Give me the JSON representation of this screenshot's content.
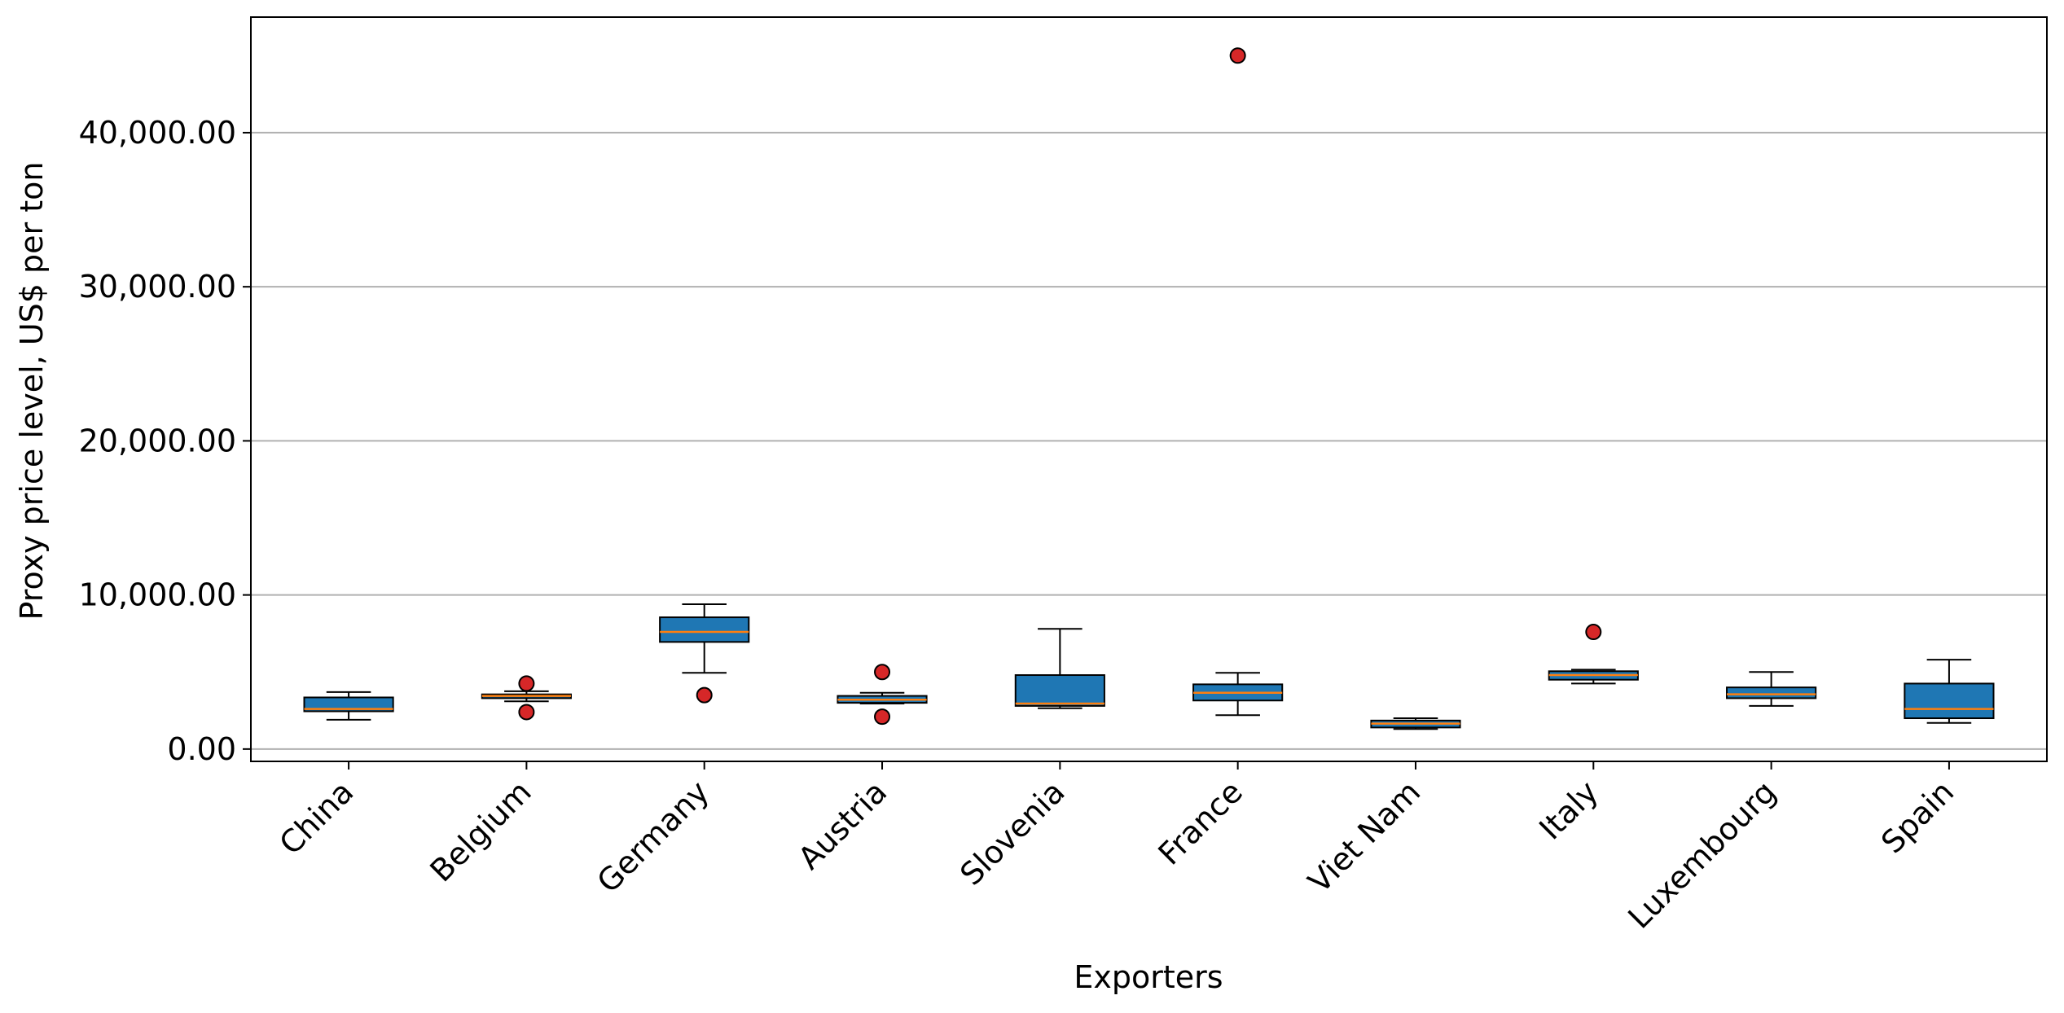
{
  "chart_data": {
    "type": "box",
    "title": "",
    "xlabel": "Exporters",
    "ylabel": "Proxy price level, US$ per ton",
    "categories": [
      "China",
      "Belgium",
      "Germany",
      "Austria",
      "Slovenia",
      "France",
      "Viet Nam",
      "Italy",
      "Luxembourg",
      "Spain"
    ],
    "boxes": [
      {
        "category": "China",
        "whisker_low": 1900,
        "q1": 2450,
        "median": 2600,
        "q3": 3350,
        "whisker_high": 3700,
        "outliers": []
      },
      {
        "category": "Belgium",
        "whisker_low": 3100,
        "q1": 3300,
        "median": 3450,
        "q3": 3550,
        "whisker_high": 3750,
        "outliers": [
          2400,
          4250
        ]
      },
      {
        "category": "Germany",
        "whisker_low": 4950,
        "q1": 6950,
        "median": 7600,
        "q3": 8550,
        "whisker_high": 9400,
        "outliers": [
          3500
        ]
      },
      {
        "category": "Austria",
        "whisker_low": 2950,
        "q1": 3000,
        "median": 3200,
        "q3": 3450,
        "whisker_high": 3650,
        "outliers": [
          2100,
          5000
        ]
      },
      {
        "category": "Slovenia",
        "whisker_low": 2650,
        "q1": 2800,
        "median": 2950,
        "q3": 4800,
        "whisker_high": 7800,
        "outliers": []
      },
      {
        "category": "France",
        "whisker_low": 2200,
        "q1": 3150,
        "median": 3650,
        "q3": 4200,
        "whisker_high": 4950,
        "outliers": [
          45000
        ]
      },
      {
        "category": "Viet Nam",
        "whisker_low": 1300,
        "q1": 1400,
        "median": 1650,
        "q3": 1850,
        "whisker_high": 2000,
        "outliers": []
      },
      {
        "category": "Italy",
        "whisker_low": 4250,
        "q1": 4500,
        "median": 4800,
        "q3": 5050,
        "whisker_high": 5150,
        "outliers": [
          7600
        ]
      },
      {
        "category": "Luxembourg",
        "whisker_low": 2800,
        "q1": 3300,
        "median": 3550,
        "q3": 4000,
        "whisker_high": 5000,
        "outliers": []
      },
      {
        "category": "Spain",
        "whisker_low": 1700,
        "q1": 2000,
        "median": 2600,
        "q3": 4250,
        "whisker_high": 5800,
        "outliers": []
      }
    ],
    "ylim": [
      -800,
      47500
    ],
    "yticks": [
      0,
      10000,
      20000,
      30000,
      40000
    ],
    "ytick_labels": [
      "0.00",
      "10,000.00",
      "20,000.00",
      "30,000.00",
      "40,000.00"
    ],
    "grid": "y",
    "legend": "none",
    "colors": {
      "box_fill": "#1f77b4",
      "median": "#ff7f0e",
      "outlier_fill": "#d62728",
      "grid": "#b0b0b0",
      "axis": "#000000"
    }
  }
}
